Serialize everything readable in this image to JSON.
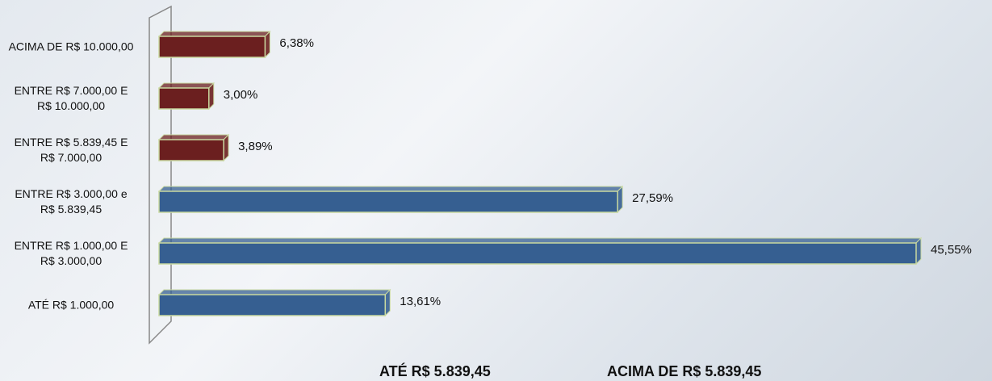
{
  "chart_data": {
    "type": "bar",
    "categories": [
      "ACIMA DE R$ 10.000,00",
      "ENTRE R$ 7.000,00 E R$ 10.000,00",
      "ENTRE R$ 5.839,45 E R$ 7.000,00",
      "ENTRE R$ 3.000,00 e R$ 5.839,45",
      "ENTRE R$ 1.000,00 E R$ 3.000,00",
      "ATÉ R$ 1.000,00"
    ],
    "series": [
      {
        "name": "ATÉ R$ 5.839,45",
        "color": "#365f91",
        "values": [
          null,
          null,
          null,
          27.59,
          45.55,
          13.61
        ],
        "value_labels": [
          null,
          null,
          null,
          "27,59%",
          "45,55%",
          "13,61%"
        ]
      },
      {
        "name": "ACIMA DE R$ 5.839,45",
        "color": "#6b1f1f",
        "values": [
          6.38,
          3.0,
          3.89,
          null,
          null,
          null
        ],
        "value_labels": [
          "6,38%",
          "3,00%",
          "3,89%",
          null,
          null,
          null
        ]
      }
    ]
  }
}
